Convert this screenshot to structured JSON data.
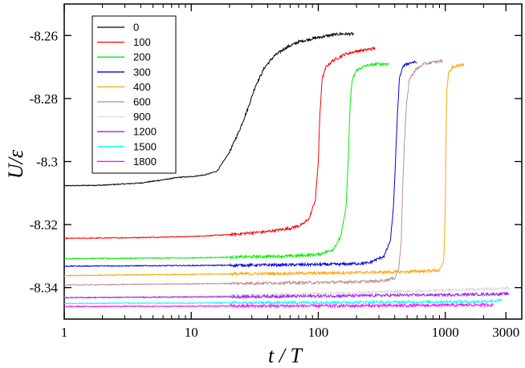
{
  "chart_data": {
    "type": "line",
    "title": "",
    "xlabel": "t / T",
    "ylabel": "U/ε",
    "xscale": "log",
    "xlim": [
      1,
      4000
    ],
    "ylim": [
      -8.35,
      -8.25
    ],
    "xticks": [
      {
        "value": 1,
        "label": "1"
      },
      {
        "value": 10,
        "label": "10"
      },
      {
        "value": 100,
        "label": "100"
      },
      {
        "value": 1000,
        "label": "1000"
      },
      {
        "value": 3000,
        "label": "3000"
      }
    ],
    "yticks": [
      {
        "value": -8.26,
        "label": "-8.26"
      },
      {
        "value": -8.28,
        "label": "-8.28"
      },
      {
        "value": -8.3,
        "label": "-8.3"
      },
      {
        "value": -8.32,
        "label": "-8.32"
      },
      {
        "value": -8.34,
        "label": "-8.34"
      }
    ],
    "legend_position": "top-left",
    "series": [
      {
        "name": "0",
        "color": "#000000",
        "points": [
          [
            1,
            -8.3077
          ],
          [
            2,
            -8.3075
          ],
          [
            4,
            -8.3068
          ],
          [
            6,
            -8.3058
          ],
          [
            8,
            -8.305
          ],
          [
            10,
            -8.3048
          ],
          [
            13,
            -8.3042
          ],
          [
            16,
            -8.303
          ],
          [
            20,
            -8.297
          ],
          [
            24,
            -8.29
          ],
          [
            28,
            -8.283
          ],
          [
            32,
            -8.276
          ],
          [
            38,
            -8.27
          ],
          [
            45,
            -8.2665
          ],
          [
            55,
            -8.264
          ],
          [
            70,
            -8.262
          ],
          [
            90,
            -8.261
          ],
          [
            120,
            -8.26
          ],
          [
            150,
            -8.2595
          ],
          [
            190,
            -8.2595
          ]
        ]
      },
      {
        "name": "100",
        "color": "#ff0000",
        "points": [
          [
            1,
            -8.3244
          ],
          [
            3,
            -8.3242
          ],
          [
            10,
            -8.3238
          ],
          [
            20,
            -8.3232
          ],
          [
            40,
            -8.3222
          ],
          [
            60,
            -8.3212
          ],
          [
            75,
            -8.32
          ],
          [
            85,
            -8.318
          ],
          [
            95,
            -8.312
          ],
          [
            100,
            -8.3
          ],
          [
            103,
            -8.285
          ],
          [
            107,
            -8.274
          ],
          [
            115,
            -8.27
          ],
          [
            130,
            -8.268
          ],
          [
            160,
            -8.266
          ],
          [
            200,
            -8.265
          ],
          [
            240,
            -8.2645
          ],
          [
            280,
            -8.264
          ]
        ]
      },
      {
        "name": "200",
        "color": "#00ee00",
        "points": [
          [
            1,
            -8.3308
          ],
          [
            10,
            -8.3306
          ],
          [
            30,
            -8.3302
          ],
          [
            60,
            -8.33
          ],
          [
            100,
            -8.3295
          ],
          [
            130,
            -8.328
          ],
          [
            150,
            -8.324
          ],
          [
            165,
            -8.315
          ],
          [
            172,
            -8.3
          ],
          [
            178,
            -8.282
          ],
          [
            185,
            -8.274
          ],
          [
            200,
            -8.271
          ],
          [
            240,
            -8.2695
          ],
          [
            300,
            -8.269
          ],
          [
            360,
            -8.269
          ]
        ]
      },
      {
        "name": "300",
        "color": "#0000ee",
        "points": [
          [
            1,
            -8.3332
          ],
          [
            10,
            -8.333
          ],
          [
            50,
            -8.3328
          ],
          [
            150,
            -8.3326
          ],
          [
            250,
            -8.3322
          ],
          [
            330,
            -8.33
          ],
          [
            370,
            -8.325
          ],
          [
            390,
            -8.315
          ],
          [
            405,
            -8.3
          ],
          [
            420,
            -8.285
          ],
          [
            435,
            -8.274
          ],
          [
            460,
            -8.27
          ],
          [
            500,
            -8.269
          ],
          [
            550,
            -8.2685
          ],
          [
            600,
            -8.2685
          ]
        ]
      },
      {
        "name": "400",
        "color": "#ffa500",
        "points": [
          [
            1,
            -8.3362
          ],
          [
            10,
            -8.3358
          ],
          [
            100,
            -8.3354
          ],
          [
            500,
            -8.335
          ],
          [
            900,
            -8.3345
          ],
          [
            970,
            -8.332
          ],
          [
            1000,
            -8.315
          ],
          [
            1010,
            -8.295
          ],
          [
            1025,
            -8.278
          ],
          [
            1060,
            -8.272
          ],
          [
            1150,
            -8.27
          ],
          [
            1300,
            -8.2695
          ],
          [
            1400,
            -8.269
          ]
        ]
      },
      {
        "name": "600",
        "color": "#bc8f8f",
        "points": [
          [
            1,
            -8.3392
          ],
          [
            10,
            -8.3388
          ],
          [
            100,
            -8.3384
          ],
          [
            300,
            -8.338
          ],
          [
            400,
            -8.337
          ],
          [
            430,
            -8.334
          ],
          [
            450,
            -8.325
          ],
          [
            460,
            -8.31
          ],
          [
            475,
            -8.295
          ],
          [
            495,
            -8.282
          ],
          [
            520,
            -8.274
          ],
          [
            580,
            -8.271
          ],
          [
            680,
            -8.269
          ],
          [
            800,
            -8.2685
          ],
          [
            950,
            -8.268
          ]
        ]
      },
      {
        "name": "900",
        "color": "#dcdcdc",
        "points": [
          [
            1,
            -8.3432
          ],
          [
            10,
            -8.3428
          ],
          [
            100,
            -8.342
          ],
          [
            500,
            -8.3412
          ],
          [
            1000,
            -8.3408
          ],
          [
            2000,
            -8.3405
          ],
          [
            3200,
            -8.3402
          ]
        ]
      },
      {
        "name": "1200",
        "color": "#a020f0",
        "points": [
          [
            1,
            -8.3432
          ],
          [
            10,
            -8.343
          ],
          [
            100,
            -8.3427
          ],
          [
            500,
            -8.3424
          ],
          [
            1000,
            -8.3423
          ],
          [
            2000,
            -8.3421
          ],
          [
            3200,
            -8.342
          ]
        ]
      },
      {
        "name": "1500",
        "color": "#00ffff",
        "points": [
          [
            1,
            -8.345
          ],
          [
            10,
            -8.3449
          ],
          [
            100,
            -8.3447
          ],
          [
            500,
            -8.3446
          ],
          [
            1000,
            -8.3445
          ],
          [
            1800,
            -8.3445
          ],
          [
            2800,
            -8.344
          ]
        ]
      },
      {
        "name": "1800",
        "color": "#ff00ff",
        "points": [
          [
            1,
            -8.346
          ],
          [
            10,
            -8.3459
          ],
          [
            100,
            -8.3458
          ],
          [
            500,
            -8.3457
          ],
          [
            1000,
            -8.3456
          ],
          [
            1500,
            -8.3455
          ],
          [
            2400,
            -8.3455
          ]
        ]
      }
    ]
  }
}
